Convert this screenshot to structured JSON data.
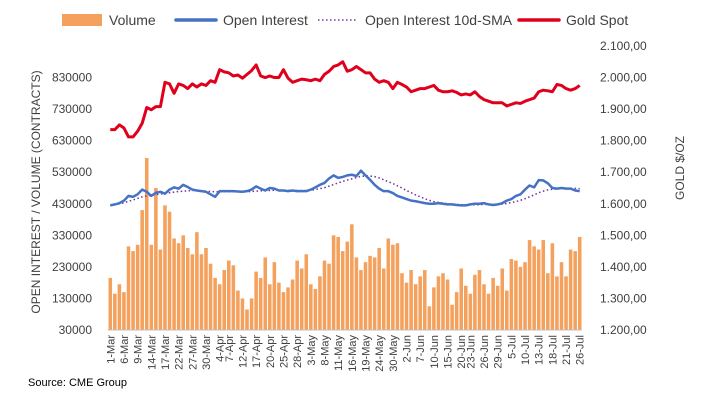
{
  "chart_data": {
    "type": "bar+line",
    "legend": [
      {
        "name": "Volume",
        "style": "bar",
        "color": "#F4A15D"
      },
      {
        "name": "Open Interest",
        "style": "line",
        "color": "#4472C4"
      },
      {
        "name": "Open Interest 10d-SMA",
        "style": "dotted",
        "color": "#7030A0"
      },
      {
        "name": "Gold Spot",
        "style": "line",
        "color": "#E0001B"
      }
    ],
    "ylabel_left": "OPEN INTEREST / VOLUME (CONTRACTS)",
    "ylabel_right": "GOLD $/OZ",
    "ylim_left": [
      30000,
      930000
    ],
    "ylim_right": [
      1200,
      2100
    ],
    "yticks_left": [
      "30000",
      "130000",
      "230000",
      "330000",
      "430000",
      "530000",
      "630000",
      "730000",
      "830000"
    ],
    "yticks_right": [
      "1.200,00",
      "1.300,00",
      "1.400,00",
      "1.500,00",
      "1.600,00",
      "1.700,00",
      "1.800,00",
      "1.900,00",
      "2.000,00",
      "2.100,00"
    ],
    "x_tick_labels": [
      "1-Mar",
      "6-Mar",
      "9-Mar",
      "14-Mar",
      "17-Mar",
      "22-Mar",
      "27-Mar",
      "30-Mar",
      "4-Apr",
      "7-Apr",
      "12-Apr",
      "17-Apr",
      "20-Apr",
      "25-Apr",
      "28-Apr",
      "3-May",
      "8-May",
      "11-May",
      "16-May",
      "19-May",
      "24-May",
      "30-May",
      "2-Jun",
      "7-Jun",
      "10-Jun",
      "15-Jun",
      "20-Jun",
      "23-Jun",
      "26-Jun",
      "29-Jun",
      "5-Jul",
      "10-Jul",
      "13-Jul",
      "18-Jul",
      "21-Jul",
      "26-Jul"
    ],
    "volume": [
      195000,
      145000,
      175000,
      150000,
      295000,
      280000,
      300000,
      410000,
      575000,
      300000,
      480000,
      285000,
      425000,
      405000,
      320000,
      305000,
      330000,
      290000,
      270000,
      340000,
      270000,
      290000,
      240000,
      195000,
      175000,
      220000,
      250000,
      235000,
      155000,
      130000,
      95000,
      130000,
      215000,
      195000,
      260000,
      175000,
      245000,
      180000,
      150000,
      165000,
      190000,
      250000,
      225000,
      270000,
      175000,
      160000,
      200000,
      250000,
      240000,
      330000,
      325000,
      280000,
      310000,
      365000,
      260000,
      220000,
      245000,
      265000,
      260000,
      290000,
      225000,
      320000,
      300000,
      305000,
      210000,
      180000,
      220000,
      175000,
      200000,
      220000,
      105000,
      165000,
      200000,
      210000,
      190000,
      110000,
      150000,
      225000,
      170000,
      145000,
      205000,
      220000,
      175000,
      145000,
      195000,
      170000,
      225000,
      155000,
      255000,
      250000,
      230000,
      245000,
      315000,
      295000,
      285000,
      315000,
      210000,
      305000,
      200000,
      245000,
      200000,
      285000,
      280000,
      325000
    ],
    "open_interest": [
      425000,
      428000,
      432000,
      440000,
      455000,
      452000,
      460000,
      475000,
      468000,
      455000,
      465000,
      468000,
      462000,
      475000,
      482000,
      478000,
      490000,
      483000,
      475000,
      472000,
      470000,
      468000,
      460000,
      452000,
      470000,
      470000,
      470000,
      470000,
      469000,
      468000,
      470000,
      475000,
      485000,
      478000,
      472000,
      480000,
      478000,
      472000,
      472000,
      470000,
      472000,
      470000,
      470000,
      470000,
      475000,
      482000,
      490000,
      496000,
      510000,
      520000,
      512000,
      515000,
      520000,
      522000,
      518000,
      535000,
      520000,
      506000,
      490000,
      478000,
      470000,
      470000,
      464000,
      455000,
      450000,
      445000,
      440000,
      438000,
      435000,
      432000,
      430000,
      430000,
      432000,
      430000,
      428000,
      428000,
      426000,
      425000,
      425000,
      428000,
      430000,
      430000,
      432000,
      428000,
      426000,
      428000,
      432000,
      440000,
      445000,
      455000,
      460000,
      475000,
      488000,
      482000,
      505000,
      504000,
      495000,
      480000,
      478000,
      480000,
      478000,
      478000,
      472000,
      470000
    ],
    "oi_sma": [
      425000,
      427000,
      430000,
      433000,
      438000,
      442000,
      447000,
      452000,
      455000,
      457000,
      459000,
      461000,
      463000,
      465000,
      467000,
      469000,
      470000,
      471000,
      472000,
      472000,
      471000,
      470000,
      469000,
      468000,
      468000,
      468000,
      468000,
      468000,
      468000,
      468000,
      468000,
      469000,
      470000,
      471000,
      472000,
      472000,
      473000,
      473000,
      473000,
      473000,
      473000,
      472000,
      472000,
      472000,
      473000,
      475000,
      478000,
      481000,
      486000,
      491000,
      496000,
      501000,
      505000,
      509000,
      513000,
      517000,
      518000,
      518000,
      516000,
      512000,
      506000,
      500000,
      494000,
      487000,
      480000,
      472000,
      465000,
      458000,
      452000,
      446000,
      441000,
      437000,
      434000,
      432000,
      430000,
      429000,
      428000,
      427000,
      427000,
      427000,
      427000,
      427000,
      428000,
      428000,
      428000,
      428000,
      429000,
      431000,
      434000,
      437000,
      441000,
      446000,
      452000,
      458000,
      465000,
      470000,
      474000,
      476000,
      477000,
      478000,
      479000,
      479000,
      479000,
      478000
    ],
    "gold_spot": [
      1835,
      1835,
      1850,
      1840,
      1812,
      1812,
      1830,
      1855,
      1905,
      1898,
      1908,
      1908,
      1985,
      1980,
      1950,
      1980,
      1975,
      1965,
      1980,
      1970,
      1980,
      1975,
      1990,
      1985,
      2025,
      2018,
      2015,
      2005,
      2008,
      1998,
      2010,
      2022,
      2040,
      2005,
      2000,
      2005,
      2000,
      2000,
      2025,
      1998,
      1985,
      1990,
      1995,
      1993,
      1990,
      1995,
      1990,
      2010,
      2020,
      2035,
      2040,
      2050,
      2020,
      2025,
      2035,
      2025,
      2015,
      2015,
      1995,
      1985,
      1990,
      1985,
      1965,
      1985,
      1978,
      1970,
      1955,
      1960,
      1965,
      1965,
      1970,
      1975,
      1960,
      1955,
      1955,
      1958,
      1953,
      1945,
      1948,
      1945,
      1955,
      1940,
      1930,
      1925,
      1920,
      1920,
      1920,
      1910,
      1915,
      1920,
      1918,
      1925,
      1930,
      1935,
      1955,
      1960,
      1958,
      1955,
      1978,
      1975,
      1965,
      1960,
      1965,
      1975
    ],
    "source": "Source: CME Group"
  }
}
